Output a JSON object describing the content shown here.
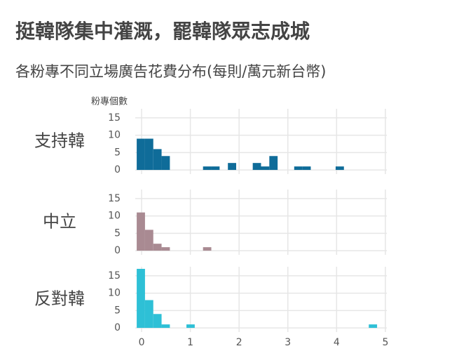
{
  "title": "挺韓隊集中灌溉，罷韓隊眾志成城",
  "subtitle": "各粉專不同立場廣告花費分布(每則/萬元新台幣)",
  "chart_data": [
    {
      "type": "histogram",
      "facet_label": "支持韓",
      "ylabel": "粉專個數",
      "color": "#0f6c99",
      "bins": [
        -0.1,
        0.07,
        0.24,
        0.41,
        0.58,
        0.75,
        0.92,
        1.09,
        1.26,
        1.43,
        1.6,
        1.77,
        1.94,
        2.11,
        2.28,
        2.45,
        2.62,
        2.79,
        2.96,
        3.13,
        3.3,
        3.47,
        3.64,
        3.81,
        3.98,
        4.15,
        4.32,
        4.49,
        4.66,
        4.83,
        5.0
      ],
      "counts": [
        9,
        9,
        6,
        4,
        0,
        0,
        0,
        0,
        1,
        1,
        0,
        2,
        0,
        0,
        2,
        1,
        4,
        0,
        0,
        1,
        1,
        0,
        0,
        0,
        1,
        0,
        0,
        0,
        0,
        0
      ],
      "xlim": [
        -0.13,
        5.03
      ],
      "ylim": [
        -1.2,
        17.6
      ],
      "xticks": [
        0,
        1,
        2,
        3,
        4,
        5
      ],
      "yticks": [
        0,
        5,
        10,
        15
      ]
    },
    {
      "type": "histogram",
      "facet_label": "中立",
      "color": "#a98a92",
      "bins": [
        -0.1,
        0.07,
        0.24,
        0.41,
        0.58,
        0.75,
        0.92,
        1.09,
        1.26,
        1.43,
        1.6,
        1.77,
        1.94,
        2.11,
        2.28,
        2.45,
        2.62,
        2.79,
        2.96,
        3.13,
        3.3,
        3.47,
        3.64,
        3.81,
        3.98,
        4.15,
        4.32,
        4.49,
        4.66,
        4.83,
        5.0
      ],
      "counts": [
        11,
        6,
        2,
        1,
        0,
        0,
        0,
        0,
        1,
        0,
        0,
        0,
        0,
        0,
        0,
        0,
        0,
        0,
        0,
        0,
        0,
        0,
        0,
        0,
        0,
        0,
        0,
        0,
        0,
        0
      ],
      "xlim": [
        -0.13,
        5.03
      ],
      "ylim": [
        -1.2,
        17.6
      ],
      "xticks": [
        0,
        1,
        2,
        3,
        4,
        5
      ],
      "yticks": [
        0,
        5,
        10,
        15
      ]
    },
    {
      "type": "histogram",
      "facet_label": "反對韓",
      "color": "#2ec0d6",
      "bins": [
        -0.1,
        0.07,
        0.24,
        0.41,
        0.58,
        0.75,
        0.92,
        1.09,
        1.26,
        1.43,
        1.6,
        1.77,
        1.94,
        2.11,
        2.28,
        2.45,
        2.62,
        2.79,
        2.96,
        3.13,
        3.3,
        3.47,
        3.64,
        3.81,
        3.98,
        4.15,
        4.32,
        4.49,
        4.66,
        4.83,
        5.0
      ],
      "counts": [
        17,
        8,
        4,
        1,
        0,
        0,
        1,
        0,
        0,
        0,
        0,
        0,
        0,
        0,
        0,
        0,
        0,
        0,
        0,
        0,
        0,
        0,
        0,
        0,
        0,
        0,
        0,
        0,
        1,
        0
      ],
      "xlim": [
        -0.13,
        5.03
      ],
      "ylim": [
        -1.2,
        17.6
      ],
      "xticks": [
        0,
        1,
        2,
        3,
        4,
        5
      ],
      "yticks": [
        0,
        5,
        10,
        15
      ]
    }
  ]
}
